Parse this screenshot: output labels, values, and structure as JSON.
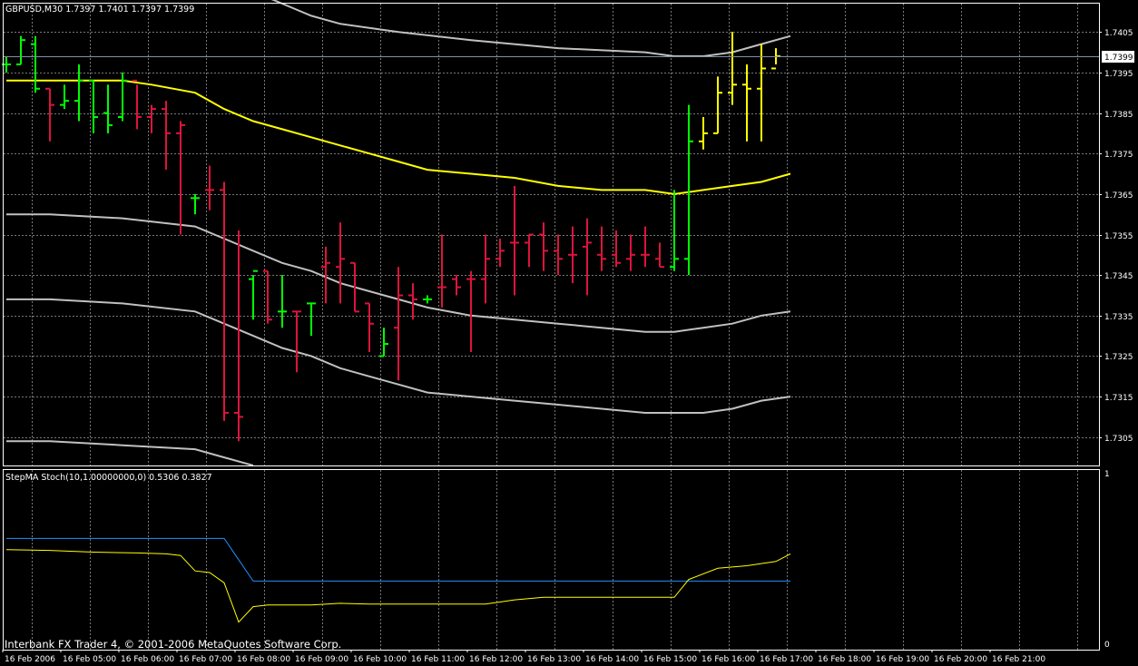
{
  "header": {
    "symbol_info": "GBPUSD,M30  1.7397 1.7401 1.7397 1.7399"
  },
  "price_tag": "1.7399",
  "indicator_title": "StepMA Stoch(10,1.00000000,0) 0.5306 0.3827",
  "copyright": "Interbank FX Trader 4, © 2001-2006 MetaQuotes Software Corp.",
  "colors": {
    "background": "#000000",
    "grid": "#a0a0a0",
    "frame": "#ffffff",
    "bull_bar": "#00ff00",
    "bear_bar": "#dc143c",
    "yellow_bar": "#ffff00",
    "ma_line": "#ffff00",
    "envelope": "#c0c0c0",
    "signal_line": "#1e90ff",
    "stoch_line": "#ffff00",
    "text": "#ffffff"
  },
  "chart_data": [
    {
      "type": "ohlc",
      "ylim": [
        1.7298,
        1.7412
      ],
      "y_ticks": [
        "1.7405",
        "1.7395",
        "1.7385",
        "1.7375",
        "1.7365",
        "1.7355",
        "1.7345",
        "1.7335",
        "1.7325",
        "1.7315",
        "1.7305"
      ],
      "x_labels": [
        "16 Feb 2006",
        "16 Feb 05:00",
        "16 Feb 06:00",
        "16 Feb 07:00",
        "16 Feb 08:00",
        "16 Feb 09:00",
        "16 Feb 10:00",
        "16 Feb 11:00",
        "16 Feb 12:00",
        "16 Feb 13:00",
        "16 Feb 14:00",
        "16 Feb 15:00",
        "16 Feb 16:00",
        "16 Feb 17:00",
        "16 Feb 18:00",
        "16 Feb 19:00",
        "16 Feb 20:00",
        "16 Feb 21:00"
      ],
      "current_price": 1.7399,
      "bars": [
        {
          "o": 1.7397,
          "h": 1.7399,
          "l": 1.7395,
          "c": 1.7397,
          "col": "g"
        },
        {
          "o": 1.7397,
          "h": 1.7404,
          "l": 1.7397,
          "c": 1.7403,
          "col": "g"
        },
        {
          "o": 1.7402,
          "h": 1.7404,
          "l": 1.739,
          "c": 1.7391,
          "col": "g"
        },
        {
          "o": 1.7391,
          "h": 1.7391,
          "l": 1.7378,
          "c": 1.7387,
          "col": "r"
        },
        {
          "o": 1.7387,
          "h": 1.7392,
          "l": 1.7386,
          "c": 1.7388,
          "col": "g"
        },
        {
          "o": 1.7388,
          "h": 1.7397,
          "l": 1.7383,
          "c": 1.7393,
          "col": "g"
        },
        {
          "o": 1.7393,
          "h": 1.7393,
          "l": 1.738,
          "c": 1.7384,
          "col": "g"
        },
        {
          "o": 1.7385,
          "h": 1.7392,
          "l": 1.738,
          "c": 1.7382,
          "col": "g"
        },
        {
          "o": 1.7384,
          "h": 1.7395,
          "l": 1.7383,
          "c": 1.7393,
          "col": "g"
        },
        {
          "o": 1.7393,
          "h": 1.7392,
          "l": 1.7381,
          "c": 1.7384,
          "col": "r"
        },
        {
          "o": 1.7384,
          "h": 1.7387,
          "l": 1.738,
          "c": 1.7386,
          "col": "r"
        },
        {
          "o": 1.7386,
          "h": 1.7388,
          "l": 1.7371,
          "c": 1.738,
          "col": "r"
        },
        {
          "o": 1.738,
          "h": 1.7383,
          "l": 1.7355,
          "c": 1.7382,
          "col": "r"
        },
        {
          "o": 1.7364,
          "h": 1.7365,
          "l": 1.736,
          "c": 1.7364,
          "col": "g"
        },
        {
          "o": 1.7366,
          "h": 1.7372,
          "l": 1.7361,
          "c": 1.7366,
          "col": "r"
        },
        {
          "o": 1.7366,
          "h": 1.7368,
          "l": 1.7309,
          "c": 1.7311,
          "col": "r"
        },
        {
          "o": 1.7311,
          "h": 1.7356,
          "l": 1.7304,
          "c": 1.731,
          "col": "r"
        },
        {
          "o": 1.7344,
          "h": 1.7345,
          "l": 1.7334,
          "c": 1.7346,
          "col": "g"
        },
        {
          "o": 1.7346,
          "h": 1.7346,
          "l": 1.7333,
          "c": 1.7334,
          "col": "r"
        },
        {
          "o": 1.7336,
          "h": 1.7345,
          "l": 1.7332,
          "c": 1.7336,
          "col": "g"
        },
        {
          "o": 1.7336,
          "h": 1.7336,
          "l": 1.7321,
          "c": 1.7336,
          "col": "r"
        },
        {
          "o": 1.7338,
          "h": 1.7338,
          "l": 1.733,
          "c": 1.7338,
          "col": "g"
        },
        {
          "o": 1.7347,
          "h": 1.7352,
          "l": 1.7338,
          "c": 1.7348,
          "col": "r"
        },
        {
          "o": 1.7347,
          "h": 1.7358,
          "l": 1.7338,
          "c": 1.7349,
          "col": "r"
        },
        {
          "o": 1.7348,
          "h": 1.7348,
          "l": 1.7336,
          "c": 1.7336,
          "col": "r"
        },
        {
          "o": 1.7338,
          "h": 1.7338,
          "l": 1.7326,
          "c": 1.7333,
          "col": "r"
        },
        {
          "o": 1.7325,
          "h": 1.7332,
          "l": 1.7325,
          "c": 1.7328,
          "col": "g"
        },
        {
          "o": 1.7332,
          "h": 1.7347,
          "l": 1.7319,
          "c": 1.734,
          "col": "r"
        },
        {
          "o": 1.734,
          "h": 1.7343,
          "l": 1.7334,
          "c": 1.7339,
          "col": "r"
        },
        {
          "o": 1.7339,
          "h": 1.734,
          "l": 1.7338,
          "c": 1.7339,
          "col": "g"
        },
        {
          "o": 1.7342,
          "h": 1.7355,
          "l": 1.7337,
          "c": 1.7342,
          "col": "r"
        },
        {
          "o": 1.7344,
          "h": 1.7345,
          "l": 1.734,
          "c": 1.7342,
          "col": "r"
        },
        {
          "o": 1.7344,
          "h": 1.7346,
          "l": 1.7326,
          "c": 1.7344,
          "col": "r"
        },
        {
          "o": 1.7344,
          "h": 1.7355,
          "l": 1.7338,
          "c": 1.7349,
          "col": "r"
        },
        {
          "o": 1.7349,
          "h": 1.7354,
          "l": 1.7347,
          "c": 1.7351,
          "col": "r"
        },
        {
          "o": 1.7353,
          "h": 1.7367,
          "l": 1.734,
          "c": 1.7353,
          "col": "r"
        },
        {
          "o": 1.7353,
          "h": 1.7355,
          "l": 1.7347,
          "c": 1.7355,
          "col": "r"
        },
        {
          "o": 1.7355,
          "h": 1.7358,
          "l": 1.7346,
          "c": 1.7351,
          "col": "r"
        },
        {
          "o": 1.7351,
          "h": 1.7355,
          "l": 1.7345,
          "c": 1.7349,
          "col": "r"
        },
        {
          "o": 1.735,
          "h": 1.7357,
          "l": 1.7343,
          "c": 1.735,
          "col": "r"
        },
        {
          "o": 1.7352,
          "h": 1.7359,
          "l": 1.734,
          "c": 1.7353,
          "col": "r"
        },
        {
          "o": 1.735,
          "h": 1.7357,
          "l": 1.7346,
          "c": 1.7349,
          "col": "r"
        },
        {
          "o": 1.735,
          "h": 1.7356,
          "l": 1.7347,
          "c": 1.7348,
          "col": "r"
        },
        {
          "o": 1.7349,
          "h": 1.7355,
          "l": 1.7346,
          "c": 1.735,
          "col": "r"
        },
        {
          "o": 1.735,
          "h": 1.7357,
          "l": 1.7347,
          "c": 1.735,
          "col": "r"
        },
        {
          "o": 1.7349,
          "h": 1.7353,
          "l": 1.7347,
          "c": 1.7347,
          "col": "r"
        },
        {
          "o": 1.7347,
          "h": 1.7366,
          "l": 1.7346,
          "c": 1.7349,
          "col": "g"
        },
        {
          "o": 1.7349,
          "h": 1.7387,
          "l": 1.7345,
          "c": 1.7378,
          "col": "g"
        },
        {
          "o": 1.7378,
          "h": 1.7384,
          "l": 1.7376,
          "c": 1.738,
          "col": "y"
        },
        {
          "o": 1.738,
          "h": 1.7394,
          "l": 1.738,
          "c": 1.739,
          "col": "y"
        },
        {
          "o": 1.739,
          "h": 1.7405,
          "l": 1.7387,
          "c": 1.7392,
          "col": "y"
        },
        {
          "o": 1.7392,
          "h": 1.7397,
          "l": 1.7378,
          "c": 1.7391,
          "col": "y"
        },
        {
          "o": 1.7391,
          "h": 1.7402,
          "l": 1.7378,
          "c": 1.7396,
          "col": "y"
        },
        {
          "o": 1.7396,
          "h": 1.7401,
          "l": 1.7397,
          "c": 1.7399,
          "col": "y"
        }
      ],
      "series": [
        {
          "kind": "ma",
          "points": [
            [
              0,
              1.7393
            ],
            [
              3,
              1.7393
            ],
            [
              5,
              1.7393
            ],
            [
              8,
              1.7393
            ],
            [
              10,
              1.7392
            ],
            [
              13,
              1.739
            ],
            [
              15,
              1.7386
            ],
            [
              17,
              1.7383
            ],
            [
              19,
              1.7381
            ],
            [
              21,
              1.7379
            ],
            [
              23,
              1.7377
            ],
            [
              25,
              1.7375
            ],
            [
              27,
              1.7373
            ],
            [
              29,
              1.7371
            ],
            [
              32,
              1.737
            ],
            [
              35,
              1.7369
            ],
            [
              38,
              1.7367
            ],
            [
              41,
              1.7366
            ],
            [
              44,
              1.7366
            ],
            [
              46,
              1.7365
            ],
            [
              48,
              1.7366
            ],
            [
              50,
              1.7367
            ],
            [
              52,
              1.7368
            ],
            [
              54,
              1.737
            ]
          ]
        },
        {
          "kind": "env",
          "points": [
            [
              17,
              1.7415
            ],
            [
              19,
              1.7412
            ],
            [
              21,
              1.7409
            ],
            [
              23,
              1.7407
            ],
            [
              27,
              1.7405
            ],
            [
              32,
              1.7403
            ],
            [
              38,
              1.7401
            ],
            [
              44,
              1.74
            ],
            [
              46,
              1.7399
            ],
            [
              48,
              1.7399
            ],
            [
              50,
              1.74
            ],
            [
              52,
              1.7402
            ],
            [
              54,
              1.7404
            ]
          ]
        },
        {
          "kind": "env",
          "points": [
            [
              0,
              1.736
            ],
            [
              3,
              1.736
            ],
            [
              8,
              1.7359
            ],
            [
              13,
              1.7357
            ],
            [
              15,
              1.7354
            ],
            [
              17,
              1.7351
            ],
            [
              19,
              1.7348
            ],
            [
              21,
              1.7346
            ],
            [
              23,
              1.7343
            ],
            [
              25,
              1.7341
            ],
            [
              27,
              1.7339
            ],
            [
              29,
              1.7337
            ],
            [
              32,
              1.7335
            ],
            [
              35,
              1.7334
            ],
            [
              38,
              1.7333
            ],
            [
              41,
              1.7332
            ],
            [
              44,
              1.7331
            ],
            [
              46,
              1.7331
            ],
            [
              48,
              1.7332
            ],
            [
              50,
              1.7333
            ],
            [
              52,
              1.7335
            ],
            [
              54,
              1.7336
            ]
          ]
        },
        {
          "kind": "env",
          "points": [
            [
              0,
              1.7339
            ],
            [
              3,
              1.7339
            ],
            [
              8,
              1.7338
            ],
            [
              13,
              1.7336
            ],
            [
              15,
              1.7333
            ],
            [
              17,
              1.733
            ],
            [
              19,
              1.7327
            ],
            [
              21,
              1.7325
            ],
            [
              23,
              1.7322
            ],
            [
              25,
              1.732
            ],
            [
              27,
              1.7318
            ],
            [
              29,
              1.7316
            ],
            [
              32,
              1.7315
            ],
            [
              35,
              1.7314
            ],
            [
              38,
              1.7313
            ],
            [
              41,
              1.7312
            ],
            [
              44,
              1.7311
            ],
            [
              46,
              1.7311
            ],
            [
              48,
              1.7311
            ],
            [
              50,
              1.7312
            ],
            [
              52,
              1.7314
            ],
            [
              54,
              1.7315
            ]
          ]
        },
        {
          "kind": "env",
          "points": [
            [
              0,
              1.7304
            ],
            [
              3,
              1.7304
            ],
            [
              8,
              1.7303
            ],
            [
              13,
              1.7302
            ],
            [
              15,
              1.73
            ],
            [
              17,
              1.7298
            ]
          ]
        }
      ]
    },
    {
      "type": "line",
      "ylim": [
        0,
        1
      ],
      "y_ticks": [
        "1",
        "0"
      ],
      "series": [
        {
          "kind": "signal",
          "points": [
            [
              0,
              0.62
            ],
            [
              15,
              0.62
            ],
            [
              17,
              0.37
            ],
            [
              54,
              0.37
            ]
          ]
        },
        {
          "kind": "stoch",
          "points": [
            [
              0,
              0.555
            ],
            [
              3,
              0.55
            ],
            [
              6,
              0.54
            ],
            [
              9,
              0.535
            ],
            [
              11,
              0.53
            ],
            [
              12,
              0.52
            ],
            [
              13,
              0.43
            ],
            [
              14,
              0.42
            ],
            [
              15,
              0.36
            ],
            [
              16,
              0.13
            ],
            [
              17,
              0.22
            ],
            [
              18,
              0.23
            ],
            [
              21,
              0.23
            ],
            [
              23,
              0.24
            ],
            [
              25,
              0.235
            ],
            [
              29,
              0.235
            ],
            [
              33,
              0.235
            ],
            [
              35,
              0.26
            ],
            [
              37,
              0.275
            ],
            [
              45,
              0.275
            ],
            [
              46,
              0.275
            ],
            [
              47,
              0.38
            ],
            [
              49,
              0.445
            ],
            [
              51,
              0.46
            ],
            [
              53,
              0.485
            ],
            [
              54,
              0.53
            ]
          ]
        }
      ]
    }
  ]
}
